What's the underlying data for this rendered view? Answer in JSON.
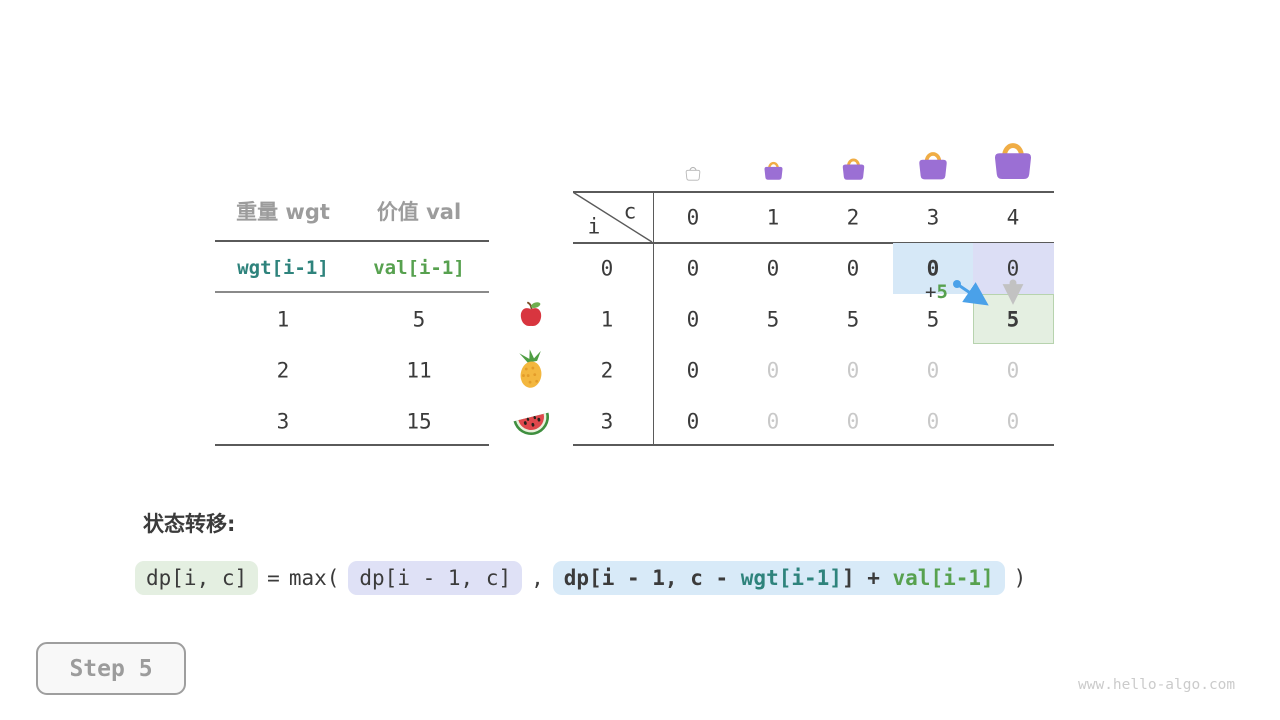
{
  "page": {
    "watermark": "www.hello-algo.com"
  },
  "step_indicator": {
    "label": "Step 5"
  },
  "items_table": {
    "headers": [
      "重量 wgt",
      "价值 val"
    ],
    "index_labels": [
      {
        "text": "wgt[i-1]",
        "color": "#2e837c"
      },
      {
        "text": "val[i-1]",
        "color": "#57a14f"
      }
    ],
    "rows": [
      {
        "wgt": "1",
        "val": "5",
        "icon": "apple"
      },
      {
        "wgt": "2",
        "val": "11",
        "icon": "pineapple"
      },
      {
        "wgt": "3",
        "val": "15",
        "icon": "watermelon"
      }
    ]
  },
  "dp_table": {
    "corner": {
      "col_var": "c",
      "row_var": "i"
    },
    "col_headers": [
      "0",
      "1",
      "2",
      "3",
      "4"
    ],
    "row_headers": [
      "0",
      "1",
      "2",
      "3"
    ],
    "cells": [
      [
        "0",
        "0",
        "0",
        "0",
        "0"
      ],
      [
        "0",
        "5",
        "5",
        "5",
        "5"
      ],
      [
        "0",
        "0",
        "0",
        "0",
        "0"
      ],
      [
        "0",
        "0",
        "0",
        "0",
        "0"
      ]
    ],
    "bold_cells": [
      [
        0,
        3
      ],
      [
        1,
        4
      ]
    ],
    "muted_cells": [
      [
        2,
        1
      ],
      [
        2,
        2
      ],
      [
        2,
        3
      ],
      [
        2,
        4
      ],
      [
        3,
        1
      ],
      [
        3,
        2
      ],
      [
        3,
        3
      ],
      [
        3,
        4
      ]
    ],
    "highlights": [
      {
        "row": 0,
        "col": 3,
        "fill": "#d6e8f7"
      },
      {
        "row": 0,
        "col": 4,
        "fill": "#dcdef5"
      },
      {
        "row": 1,
        "col": 4,
        "fill": "#e4efe1",
        "border": "#b7d3ae"
      }
    ],
    "bags": [
      {
        "capacity": 0,
        "style": "ghost"
      },
      {
        "capacity": 1,
        "style": "filled"
      },
      {
        "capacity": 2,
        "style": "filled"
      },
      {
        "capacity": 3,
        "style": "filled"
      },
      {
        "capacity": 4,
        "style": "filled"
      }
    ],
    "annotation": {
      "plus": "+",
      "value": "5",
      "plus_color": "#3b3b3b",
      "value_color": "#57a14f",
      "take_arrow_color": "#4aa1e9",
      "skip_arrow_color": "#c2c2c2"
    }
  },
  "formula": {
    "heading": "状态转移:",
    "tokens": {
      "lhs": "dp[i, c]",
      "equals": "=",
      "max_open": "max(",
      "arg1": "dp[i - 1, c]",
      "comma": ",",
      "arg2": [
        {
          "text": "dp[i - 1, c - ",
          "color": "#3b3b3b"
        },
        {
          "text": "wgt[i-1]",
          "color": "#2e837c"
        },
        {
          "text": "] + ",
          "color": "#3b3b3b"
        },
        {
          "text": "val[i-1]",
          "color": "#57a14f"
        }
      ],
      "close": ")"
    },
    "pill_colors": {
      "lhs": "#e4efe1",
      "arg1": "#dfe1f6",
      "arg2": "#d8eaf8"
    }
  },
  "colors": {
    "text_dark": "#3b3b3b",
    "text_gray": "#9c9c9c",
    "text_muted": "#c9c9c9",
    "line_dark": "#5a5a5a",
    "line_mid": "#8a8a8a",
    "bag_purple": "#9b6fd4",
    "bag_handle": "#f0ad45",
    "bag_ghost": "#b5b5b5"
  }
}
